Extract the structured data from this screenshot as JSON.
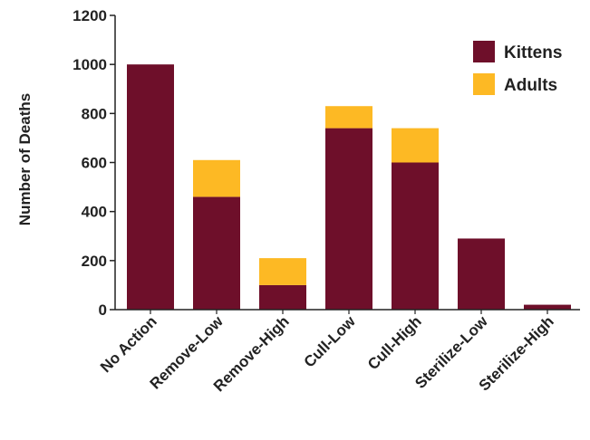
{
  "chart_data": {
    "type": "bar",
    "stacked": true,
    "categories": [
      "No Action",
      "Remove-Low",
      "Remove-High",
      "Cull-Low",
      "Cull-High",
      "Sterilize-Low",
      "Sterilize-High"
    ],
    "series": [
      {
        "name": "Kittens",
        "color": "#6e0f2a",
        "values": [
          1000,
          460,
          100,
          740,
          600,
          290,
          20
        ]
      },
      {
        "name": "Adults",
        "color": "#fdb924",
        "values": [
          0,
          150,
          110,
          90,
          140,
          0,
          0
        ]
      }
    ],
    "ylabel": "Number of Deaths",
    "xlabel": "",
    "ylim": [
      0,
      1200
    ],
    "yticks": [
      0,
      200,
      400,
      600,
      800,
      1000,
      1200
    ],
    "grid": false,
    "legend_position": "top-right"
  }
}
